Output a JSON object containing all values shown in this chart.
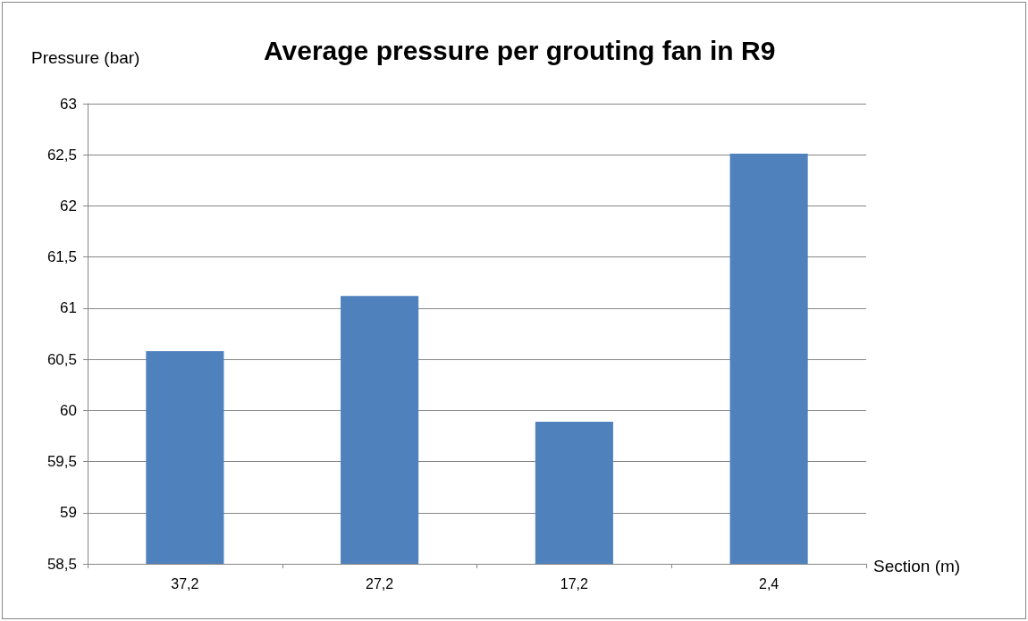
{
  "chart_data": {
    "type": "bar",
    "title": "Average pressure per grouting fan in R9",
    "ylabel": "Pressure (bar)",
    "xlabel": "Section (m)",
    "categories": [
      "37,2",
      "27,2",
      "17,2",
      "2,4"
    ],
    "values": [
      60.58,
      61.12,
      59.89,
      62.51
    ],
    "color": "#4f81bd",
    "ylim": [
      58.5,
      63
    ],
    "yticks": [
      {
        "value": 58.5,
        "label": "58,5"
      },
      {
        "value": 59,
        "label": "59"
      },
      {
        "value": 59.5,
        "label": "59,5"
      },
      {
        "value": 60,
        "label": "60"
      },
      {
        "value": 60.5,
        "label": "60,5"
      },
      {
        "value": 61,
        "label": "61"
      },
      {
        "value": 61.5,
        "label": "61,5"
      },
      {
        "value": 62,
        "label": "62"
      },
      {
        "value": 62.5,
        "label": "62,5"
      },
      {
        "value": 63,
        "label": "63"
      }
    ],
    "grid": "y"
  }
}
